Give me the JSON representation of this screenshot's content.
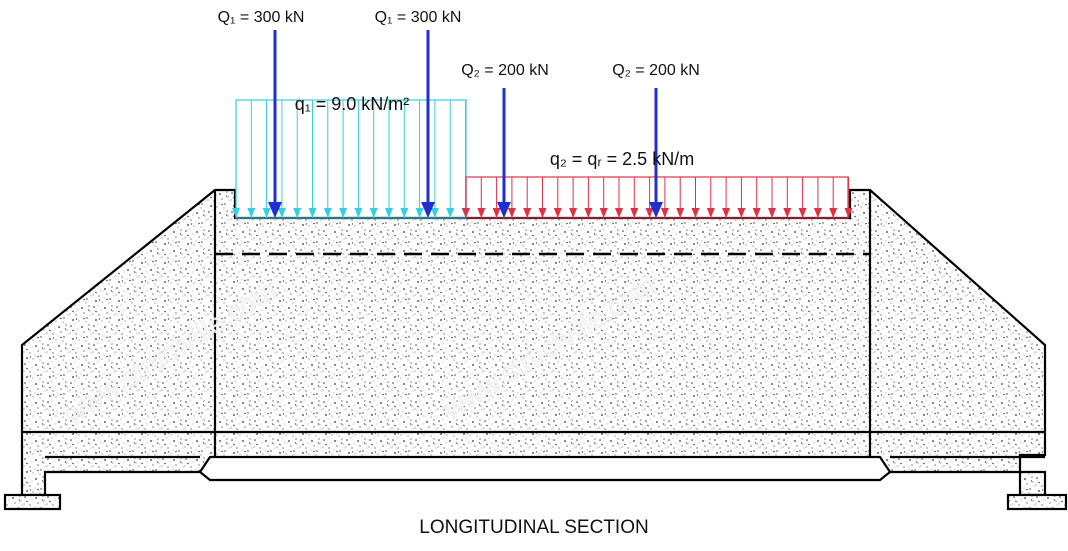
{
  "loads": [
    {
      "label": "Q₁ = 300 kN"
    },
    {
      "label": "Q₁ = 300 kN"
    },
    {
      "label": "Q₂ = 200 kN"
    },
    {
      "label": "Q₂ = 200 kN"
    }
  ],
  "distributed": [
    {
      "label": "q₁ = 9.0 kN/m²"
    },
    {
      "label": "q₂ = qᵣ = 2.5 kN/m"
    }
  ],
  "watermarks": [
    "www.structville.com",
    "www.structville.com"
  ],
  "title": "LONGITUDINAL SECTION"
}
